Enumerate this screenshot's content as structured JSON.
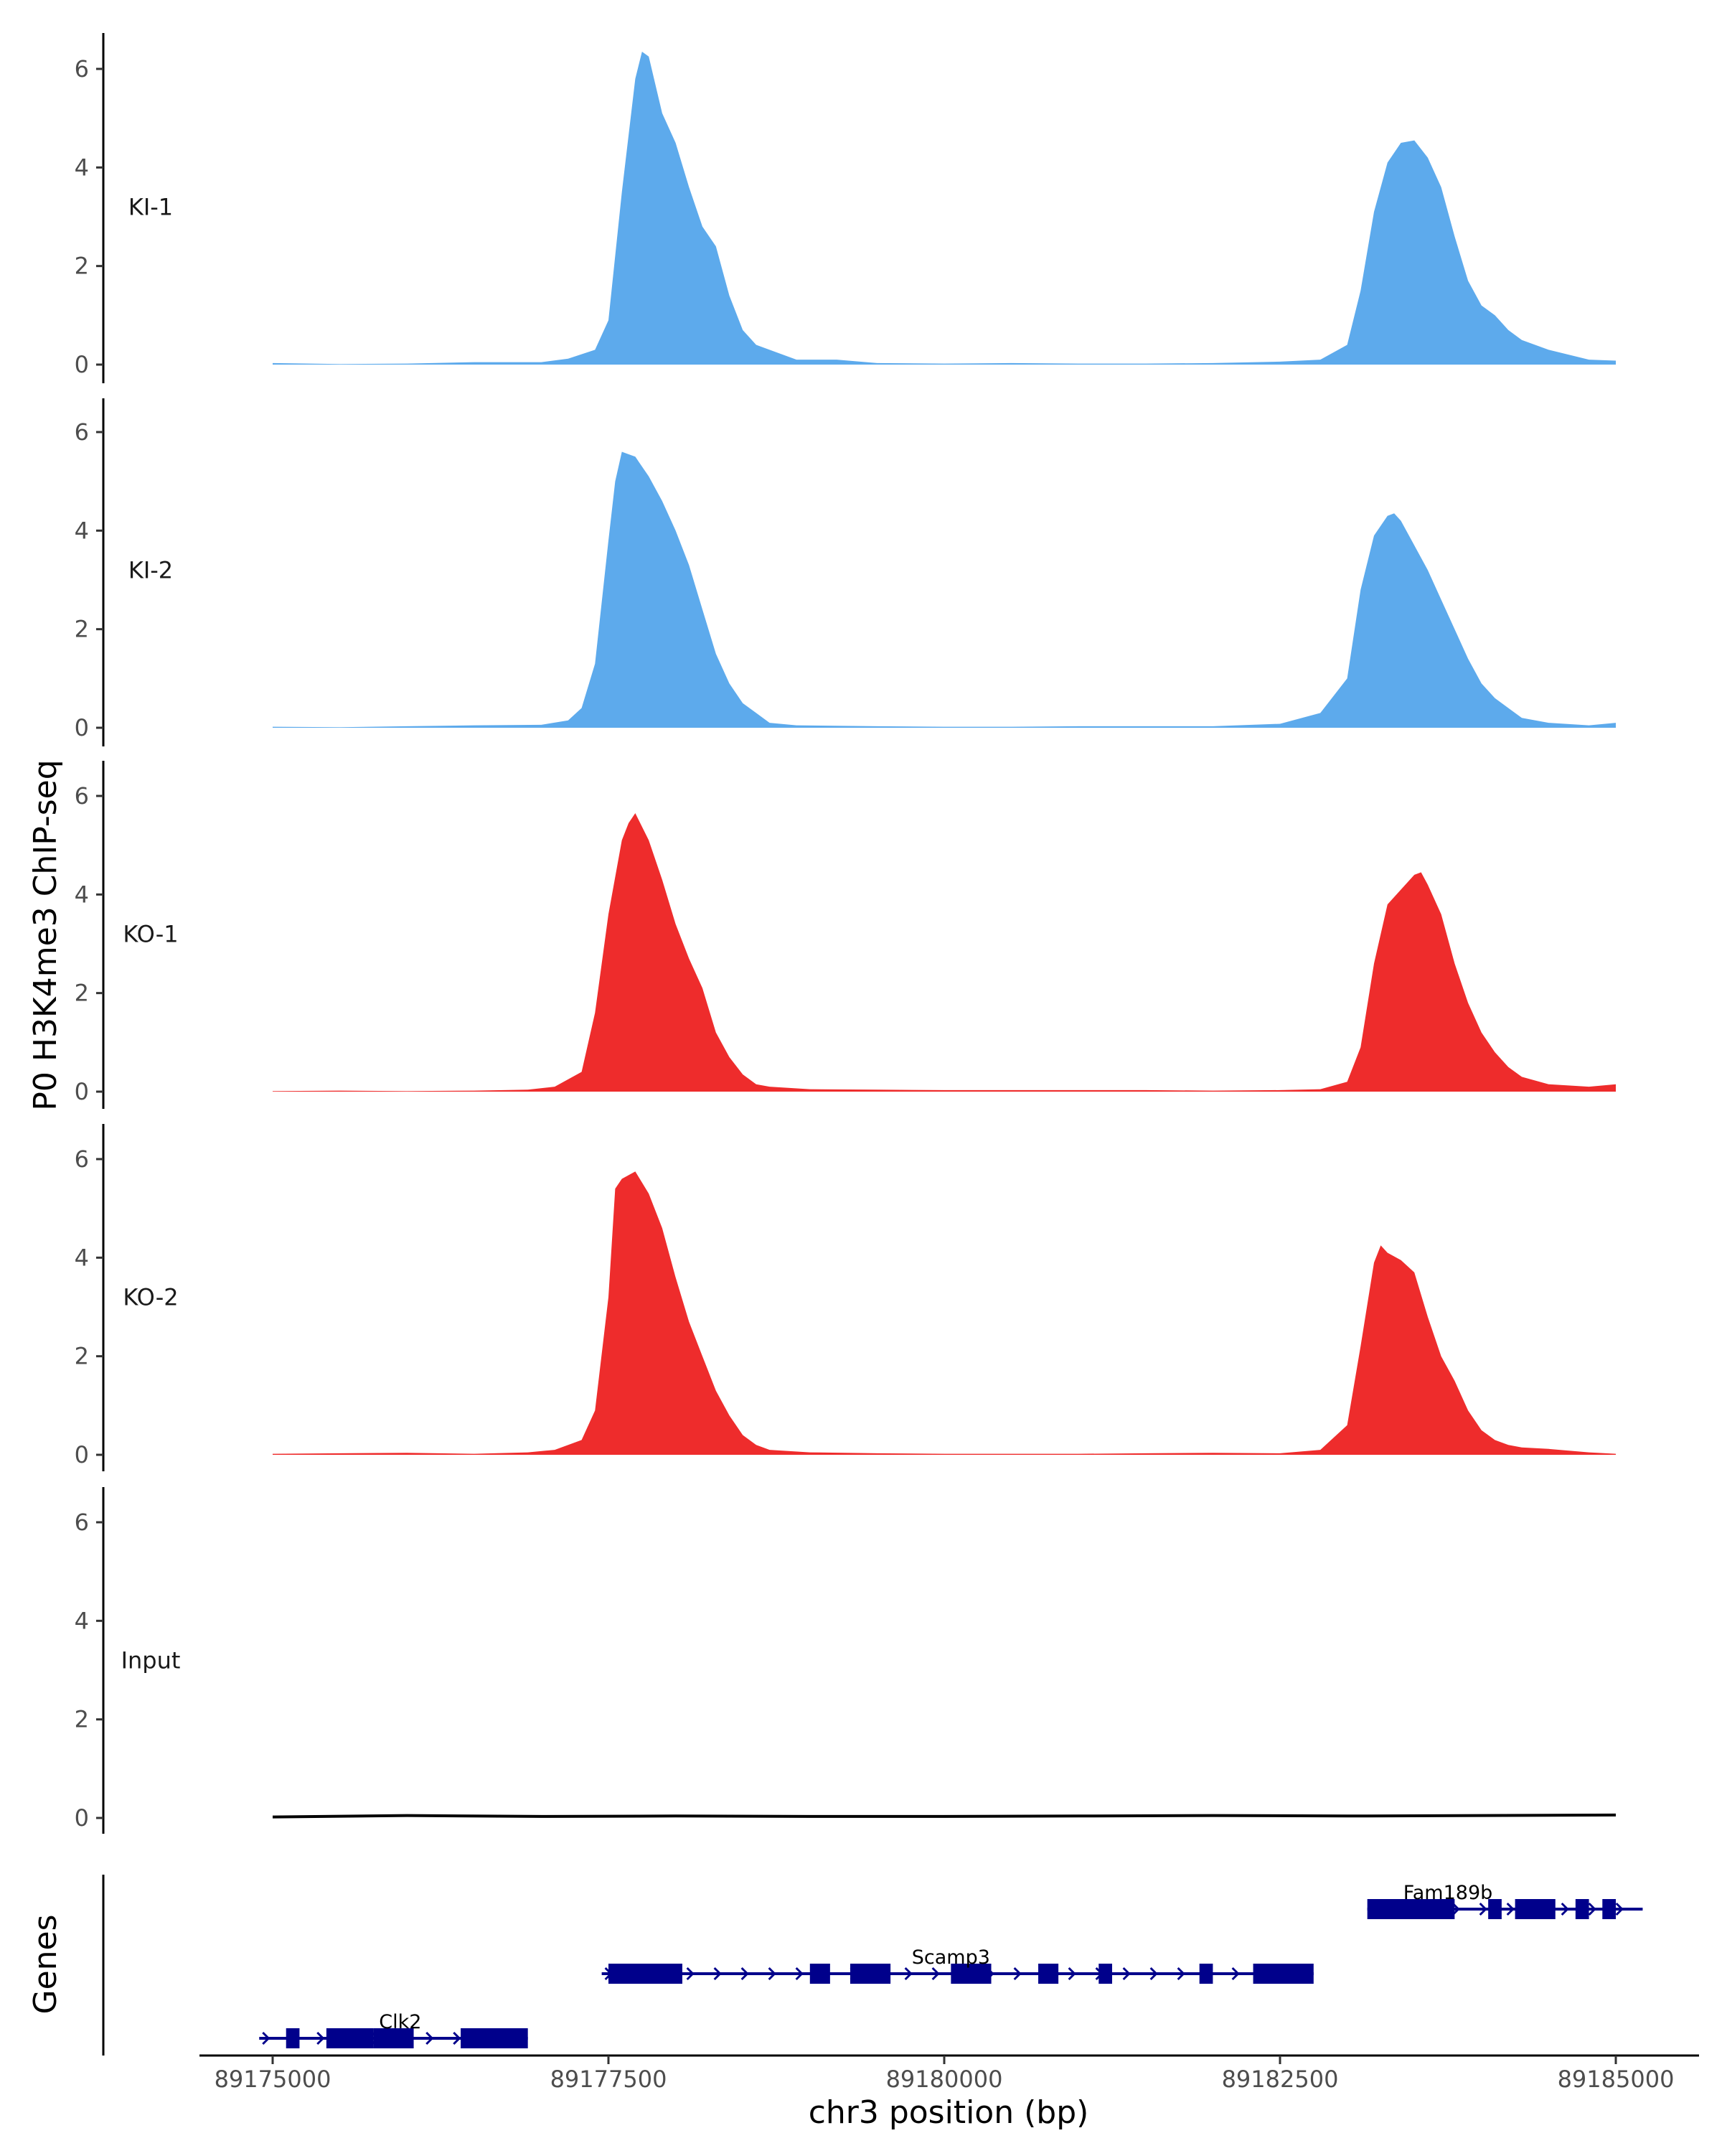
{
  "chart_data": {
    "type": "area",
    "ylabel": "P0 H3K4me3 ChIP-seq",
    "xlabel": "chr3 position (bp)",
    "xlim": [
      89174000,
      89185500
    ],
    "ylim": [
      0,
      6.5
    ],
    "y_ticks": [
      0,
      2,
      4,
      6
    ],
    "x_ticks": [
      89175000,
      89177500,
      89180000,
      89182500,
      89185000
    ],
    "x_tick_labels": [
      "89175000",
      "89177500",
      "89180000",
      "89182500",
      "89185000"
    ],
    "colors": {
      "KI": "#5DAAEC",
      "KO": "#EE2C2C",
      "Input": "#000000",
      "genes": "#00008B"
    },
    "tracks": [
      {
        "name": "KI-1",
        "color": "#5DAAEC",
        "x": [
          89175000,
          89175500,
          89176000,
          89176500,
          89177000,
          89177200,
          89177400,
          89177500,
          89177600,
          89177700,
          89177750,
          89177800,
          89177900,
          89178000,
          89178100,
          89178200,
          89178300,
          89178400,
          89178500,
          89178600,
          89178700,
          89178900,
          89179200,
          89179500,
          89180000,
          89180500,
          89181000,
          89181500,
          89182000,
          89182500,
          89182800,
          89183000,
          89183100,
          89183200,
          89183300,
          89183400,
          89183500,
          89183600,
          89183700,
          89183800,
          89183900,
          89184000,
          89184100,
          89184200,
          89184300,
          89184500,
          89184800,
          89185000
        ],
        "y": [
          0.03,
          0.01,
          0.02,
          0.05,
          0.05,
          0.12,
          0.3,
          0.9,
          3.5,
          5.8,
          6.35,
          6.25,
          5.1,
          4.5,
          3.6,
          2.8,
          2.4,
          1.4,
          0.7,
          0.4,
          0.3,
          0.1,
          0.1,
          0.03,
          0.02,
          0.03,
          0.02,
          0.02,
          0.03,
          0.06,
          0.1,
          0.4,
          1.5,
          3.1,
          4.1,
          4.5,
          4.55,
          4.2,
          3.6,
          2.6,
          1.7,
          1.2,
          1.0,
          0.7,
          0.5,
          0.3,
          0.1,
          0.08
        ]
      },
      {
        "name": "KI-2",
        "color": "#5DAAEC",
        "x": [
          89175000,
          89175500,
          89176000,
          89176500,
          89177000,
          89177200,
          89177300,
          89177400,
          89177500,
          89177550,
          89177600,
          89177700,
          89177800,
          89177900,
          89178000,
          89178100,
          89178200,
          89178300,
          89178400,
          89178500,
          89178600,
          89178700,
          89178900,
          89179500,
          89180000,
          89180500,
          89181000,
          89181500,
          89182000,
          89182500,
          89182800,
          89183000,
          89183100,
          89183200,
          89183300,
          89183350,
          89183400,
          89183500,
          89183600,
          89183700,
          89183800,
          89183900,
          89184000,
          89184100,
          89184200,
          89184300,
          89184500,
          89184800,
          89185000
        ],
        "y": [
          0.02,
          0.01,
          0.03,
          0.05,
          0.06,
          0.15,
          0.4,
          1.3,
          3.8,
          5.0,
          5.6,
          5.5,
          5.1,
          4.6,
          4.0,
          3.3,
          2.4,
          1.5,
          0.9,
          0.5,
          0.3,
          0.1,
          0.05,
          0.03,
          0.02,
          0.02,
          0.03,
          0.03,
          0.03,
          0.08,
          0.3,
          1.0,
          2.8,
          3.9,
          4.3,
          4.35,
          4.2,
          3.7,
          3.2,
          2.6,
          2.0,
          1.4,
          0.9,
          0.6,
          0.4,
          0.2,
          0.1,
          0.05,
          0.1
        ]
      },
      {
        "name": "KO-1",
        "color": "#EE2C2C",
        "x": [
          89175000,
          89175500,
          89176000,
          89176500,
          89176900,
          89177100,
          89177300,
          89177400,
          89177500,
          89177600,
          89177650,
          89177700,
          89177800,
          89177900,
          89178000,
          89178100,
          89178200,
          89178300,
          89178400,
          89178500,
          89178600,
          89178700,
          89179000,
          89179500,
          89180000,
          89180500,
          89181000,
          89181500,
          89182000,
          89182500,
          89182800,
          89183000,
          89183100,
          89183200,
          89183300,
          89183400,
          89183500,
          89183550,
          89183600,
          89183700,
          89183800,
          89183900,
          89184000,
          89184100,
          89184200,
          89184300,
          89184500,
          89184800,
          89185000
        ],
        "y": [
          0.01,
          0.02,
          0.01,
          0.02,
          0.04,
          0.1,
          0.4,
          1.6,
          3.6,
          5.1,
          5.45,
          5.65,
          5.1,
          4.3,
          3.4,
          2.7,
          2.1,
          1.2,
          0.7,
          0.35,
          0.15,
          0.1,
          0.05,
          0.04,
          0.03,
          0.03,
          0.03,
          0.03,
          0.02,
          0.03,
          0.05,
          0.2,
          0.9,
          2.6,
          3.8,
          4.1,
          4.4,
          4.45,
          4.2,
          3.6,
          2.6,
          1.8,
          1.2,
          0.8,
          0.5,
          0.3,
          0.15,
          0.1,
          0.15
        ]
      },
      {
        "name": "KO-2",
        "color": "#EE2C2C",
        "x": [
          89175000,
          89175500,
          89176000,
          89176500,
          89176900,
          89177100,
          89177300,
          89177400,
          89177500,
          89177550,
          89177600,
          89177700,
          89177800,
          89177900,
          89178000,
          89178100,
          89178200,
          89178300,
          89178400,
          89178500,
          89178600,
          89178700,
          89179000,
          89179500,
          89180000,
          89180500,
          89181000,
          89181500,
          89182000,
          89182500,
          89182800,
          89183000,
          89183100,
          89183200,
          89183250,
          89183300,
          89183400,
          89183500,
          89183600,
          89183700,
          89183800,
          89183900,
          89184000,
          89184100,
          89184200,
          89184300,
          89184500,
          89184800,
          89185000
        ],
        "y": [
          0.02,
          0.03,
          0.04,
          0.02,
          0.05,
          0.1,
          0.3,
          0.9,
          3.2,
          5.4,
          5.6,
          5.75,
          5.3,
          4.6,
          3.6,
          2.7,
          2.0,
          1.3,
          0.8,
          0.4,
          0.2,
          0.1,
          0.05,
          0.03,
          0.02,
          0.02,
          0.02,
          0.03,
          0.04,
          0.03,
          0.1,
          0.6,
          2.2,
          3.9,
          4.25,
          4.1,
          3.95,
          3.7,
          2.8,
          2.0,
          1.5,
          0.9,
          0.5,
          0.3,
          0.2,
          0.15,
          0.12,
          0.05,
          0.02
        ]
      },
      {
        "name": "Input",
        "color": "#000000",
        "x": [
          89175000,
          89176000,
          89177000,
          89178000,
          89179000,
          89180000,
          89181000,
          89182000,
          89183000,
          89184000,
          89185000
        ],
        "y": [
          0.02,
          0.05,
          0.03,
          0.04,
          0.03,
          0.03,
          0.04,
          0.05,
          0.04,
          0.05,
          0.06
        ]
      }
    ],
    "genes_panel": {
      "label": "Genes",
      "genes": [
        {
          "name": "Fam189b",
          "start": 89183150,
          "end": 89185200,
          "strand": "+",
          "row": 0,
          "exons": [
            [
              89183150,
              89183800
            ],
            [
              89184050,
              89184150
            ],
            [
              89184250,
              89184550
            ],
            [
              89184700,
              89184800
            ],
            [
              89184900,
              89185000
            ]
          ]
        },
        {
          "name": "Scamp3",
          "start": 89177450,
          "end": 89182750,
          "strand": "+",
          "row": 1,
          "exons": [
            [
              89177500,
              89178050
            ],
            [
              89179000,
              89179150
            ],
            [
              89179300,
              89179600
            ],
            [
              89180050,
              89180350
            ],
            [
              89180700,
              89180850
            ],
            [
              89181150,
              89181250
            ],
            [
              89181900,
              89182000
            ],
            [
              89182300,
              89182750
            ]
          ]
        },
        {
          "name": "Clk2",
          "start": 89174900,
          "end": 89176900,
          "strand": "+",
          "row": 2,
          "exons": [
            [
              89175100,
              89175200
            ],
            [
              89175400,
              89175750
            ],
            [
              89175750,
              89176050
            ],
            [
              89176400,
              89176900
            ]
          ]
        }
      ]
    }
  }
}
